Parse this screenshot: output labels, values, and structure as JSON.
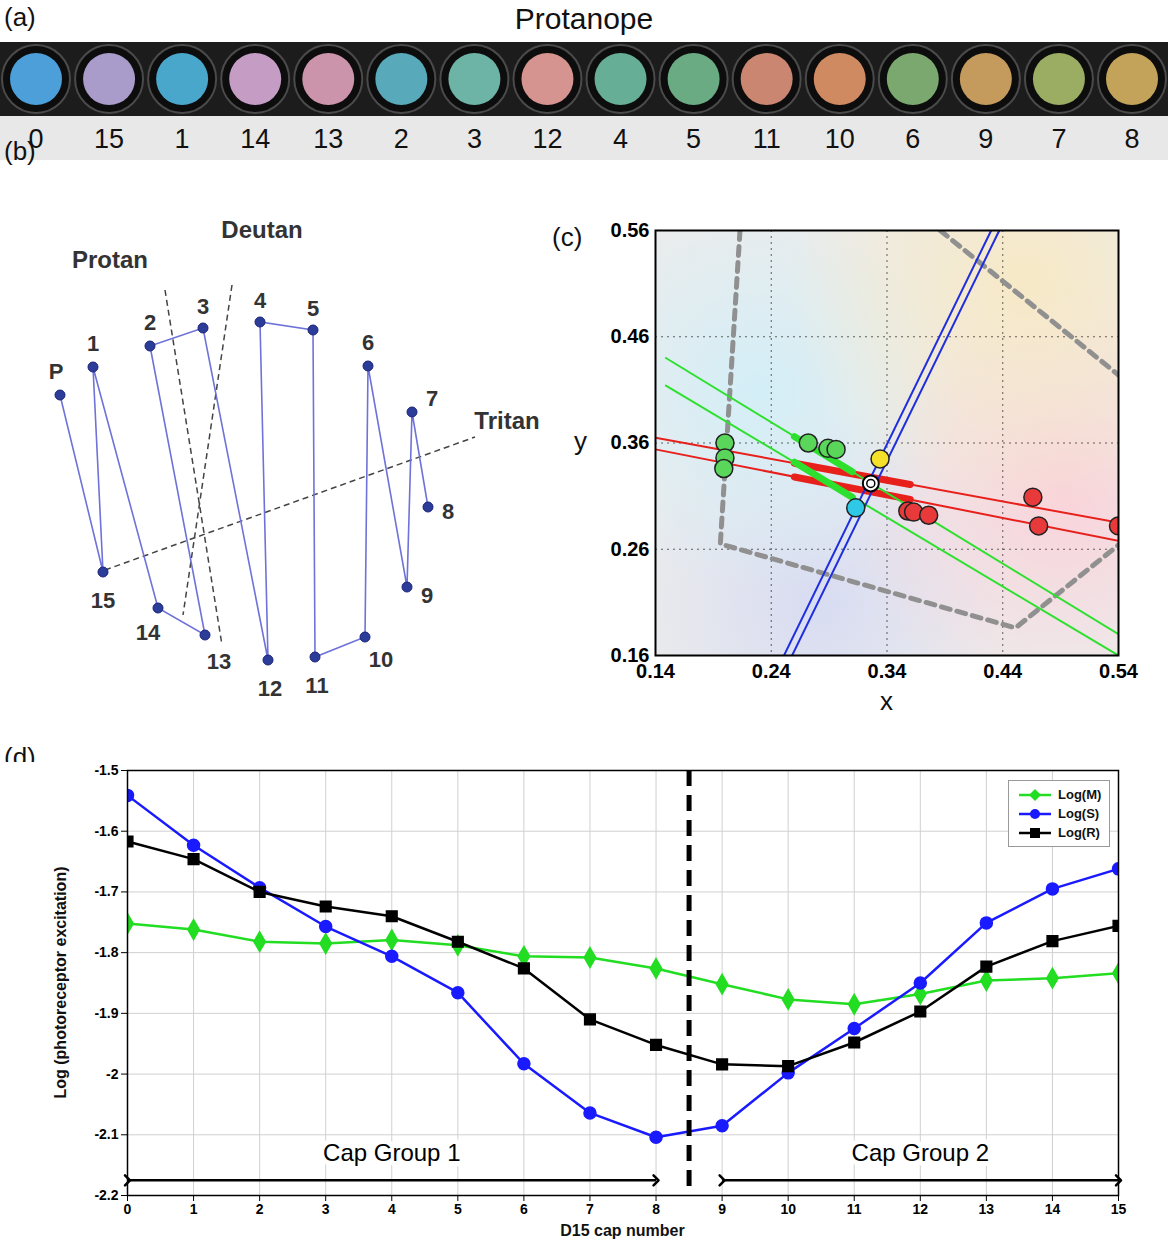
{
  "panel_a": {
    "letter": "(a)",
    "title": "Protanope",
    "caps": [
      {
        "label": "0",
        "color": "#4c9fd8"
      },
      {
        "label": "15",
        "color": "#a99ccb"
      },
      {
        "label": "1",
        "color": "#4aa7cc"
      },
      {
        "label": "14",
        "color": "#c59dc4"
      },
      {
        "label": "13",
        "color": "#cb94ab"
      },
      {
        "label": "2",
        "color": "#58aabb"
      },
      {
        "label": "3",
        "color": "#6db4a6"
      },
      {
        "label": "12",
        "color": "#d69490"
      },
      {
        "label": "4",
        "color": "#67ae96"
      },
      {
        "label": "5",
        "color": "#6aab84"
      },
      {
        "label": "11",
        "color": "#cb8672"
      },
      {
        "label": "10",
        "color": "#d08a62"
      },
      {
        "label": "6",
        "color": "#7ba86f"
      },
      {
        "label": "9",
        "color": "#c49b5d"
      },
      {
        "label": "7",
        "color": "#9aad62"
      },
      {
        "label": "8",
        "color": "#c3a35a"
      }
    ]
  },
  "panel_b": {
    "letter": "(b)",
    "nodes": [
      "P",
      "1",
      "2",
      "3",
      "4",
      "5",
      "6",
      "7",
      "8",
      "9",
      "10",
      "11",
      "12",
      "13",
      "14",
      "15"
    ],
    "axes": [
      "Protan",
      "Deutan",
      "Tritan"
    ]
  },
  "chart_data": [
    {
      "letter": "(c)",
      "type": "scatter",
      "x_label": "x",
      "y_label": "y",
      "xlim": [
        0.14,
        0.54
      ],
      "ylim": [
        0.16,
        0.56
      ],
      "xticks": [
        0.14,
        0.24,
        0.34,
        0.44,
        0.54
      ],
      "yticks": [
        0.16,
        0.26,
        0.36,
        0.46,
        0.56
      ],
      "grid": true,
      "series": [
        {
          "type": "line",
          "color": "#909090",
          "line_style": "dashed",
          "x": [
            0.213,
            0.196,
            0.451,
            0.54
          ],
          "y": [
            0.56,
            0.265,
            0.186,
            0.264
          ]
        },
        {
          "type": "line",
          "color": "#909090",
          "line_style": "dashed",
          "x": [
            0.386,
            0.54
          ],
          "y": [
            0.56,
            0.424
          ]
        },
        {
          "type": "line",
          "color": "#e8201c",
          "line_style": "solid",
          "x": [
            0.14,
            0.54
          ],
          "y": [
            0.365,
            0.285
          ]
        },
        {
          "type": "line",
          "color": "#e8201c",
          "line_style": "solid",
          "x": [
            0.14,
            0.54
          ],
          "y": [
            0.354,
            0.268
          ]
        },
        {
          "type": "line",
          "color": "#e8201c",
          "line_style": "thick",
          "x": [
            0.26,
            0.36
          ],
          "y": [
            0.341,
            0.321
          ]
        },
        {
          "type": "line",
          "color": "#e8201c",
          "line_style": "thick",
          "x": [
            0.26,
            0.36
          ],
          "y": [
            0.328,
            0.307
          ]
        },
        {
          "type": "line",
          "color": "#2ee02e",
          "line_style": "solid",
          "x": [
            0.149,
            0.54
          ],
          "y": [
            0.44,
            0.18
          ]
        },
        {
          "type": "line",
          "color": "#2ee02e",
          "line_style": "solid",
          "x": [
            0.149,
            0.54
          ],
          "y": [
            0.414,
            0.16
          ]
        },
        {
          "type": "line",
          "color": "#2ee02e",
          "line_style": "thick",
          "x": [
            0.26,
            0.31
          ],
          "y": [
            0.366,
            0.333
          ]
        },
        {
          "type": "line",
          "color": "#2ee02e",
          "line_style": "thick",
          "x": [
            0.26,
            0.31
          ],
          "y": [
            0.342,
            0.309
          ]
        },
        {
          "type": "line",
          "color": "#1f2fe0",
          "line_style": "solid",
          "x": [
            0.251,
            0.43
          ],
          "y": [
            0.16,
            0.56
          ]
        },
        {
          "type": "line",
          "color": "#1f2fe0",
          "line_style": "solid",
          "x": [
            0.258,
            0.437
          ],
          "y": [
            0.16,
            0.56
          ]
        },
        {
          "type": "scatter",
          "color": "#5ad65a",
          "marker": "circle",
          "x": [
            0.2,
            0.2,
            0.199,
            0.272,
            0.289,
            0.296
          ],
          "y": [
            0.36,
            0.346,
            0.336,
            0.36,
            0.355,
            0.354
          ]
        },
        {
          "type": "scatter",
          "color": "#e83a3a",
          "marker": "circle",
          "x": [
            0.358,
            0.363,
            0.376,
            0.466,
            0.471,
            0.54
          ],
          "y": [
            0.296,
            0.295,
            0.292,
            0.309,
            0.282,
            0.282
          ]
        },
        {
          "type": "scatter",
          "color": "#f5e02a",
          "marker": "circle",
          "x": [
            0.334
          ],
          "y": [
            0.345
          ]
        },
        {
          "type": "scatter",
          "color": "#2fc8e6",
          "marker": "circle",
          "x": [
            0.313
          ],
          "y": [
            0.299
          ]
        },
        {
          "type": "scatter",
          "color": "#000000",
          "marker": "ellipse",
          "x": [
            0.326
          ],
          "y": [
            0.322
          ]
        }
      ]
    },
    {
      "letter": "(d)",
      "type": "line",
      "x_label": "D15 cap number",
      "y_label": "Log (photoreceptor excitation)",
      "x": [
        0,
        1,
        2,
        3,
        4,
        5,
        6,
        7,
        8,
        9,
        10,
        11,
        12,
        13,
        14,
        15
      ],
      "xlim": [
        0,
        15
      ],
      "ylim": [
        -2.2,
        -1.5
      ],
      "xticks": [
        0,
        1,
        2,
        3,
        4,
        5,
        6,
        7,
        8,
        9,
        10,
        11,
        12,
        13,
        14,
        15
      ],
      "yticks": [
        -2.2,
        -2.1,
        -2,
        -1.9,
        -1.8,
        -1.7,
        -1.6,
        -1.5
      ],
      "grid": true,
      "legend": "top-right",
      "series": [
        {
          "name": "Log(M)",
          "color": "#22dd22",
          "marker": "diamond",
          "values": [
            -1.752,
            -1.762,
            -1.782,
            -1.785,
            -1.779,
            -1.788,
            -1.806,
            -1.808,
            -1.826,
            -1.852,
            -1.877,
            -1.885,
            -1.868,
            -1.846,
            -1.842,
            -1.834
          ]
        },
        {
          "name": "Log(S)",
          "color": "#1a1aff",
          "marker": "circle",
          "values": [
            -1.541,
            -1.623,
            -1.693,
            -1.757,
            -1.806,
            -1.866,
            -1.983,
            -2.064,
            -2.104,
            -2.085,
            -1.998,
            -1.925,
            -1.85,
            -1.751,
            -1.695,
            -1.662
          ]
        },
        {
          "name": "Log(R)",
          "color": "#000000",
          "marker": "square",
          "values": [
            -1.617,
            -1.646,
            -1.7,
            -1.724,
            -1.74,
            -1.782,
            -1.826,
            -1.91,
            -1.952,
            -1.984,
            -1.987,
            -1.948,
            -1.897,
            -1.823,
            -1.781,
            -1.756
          ]
        }
      ],
      "divider_x": 8.5,
      "annotations": [
        {
          "text": "Cap Group 1",
          "x_start": 0,
          "x_end": 8,
          "y": -2.175,
          "text_y": -2.13
        },
        {
          "text": "Cap Group 2",
          "x_start": 9,
          "x_end": 15,
          "y": -2.175,
          "text_y": -2.13
        }
      ]
    }
  ]
}
